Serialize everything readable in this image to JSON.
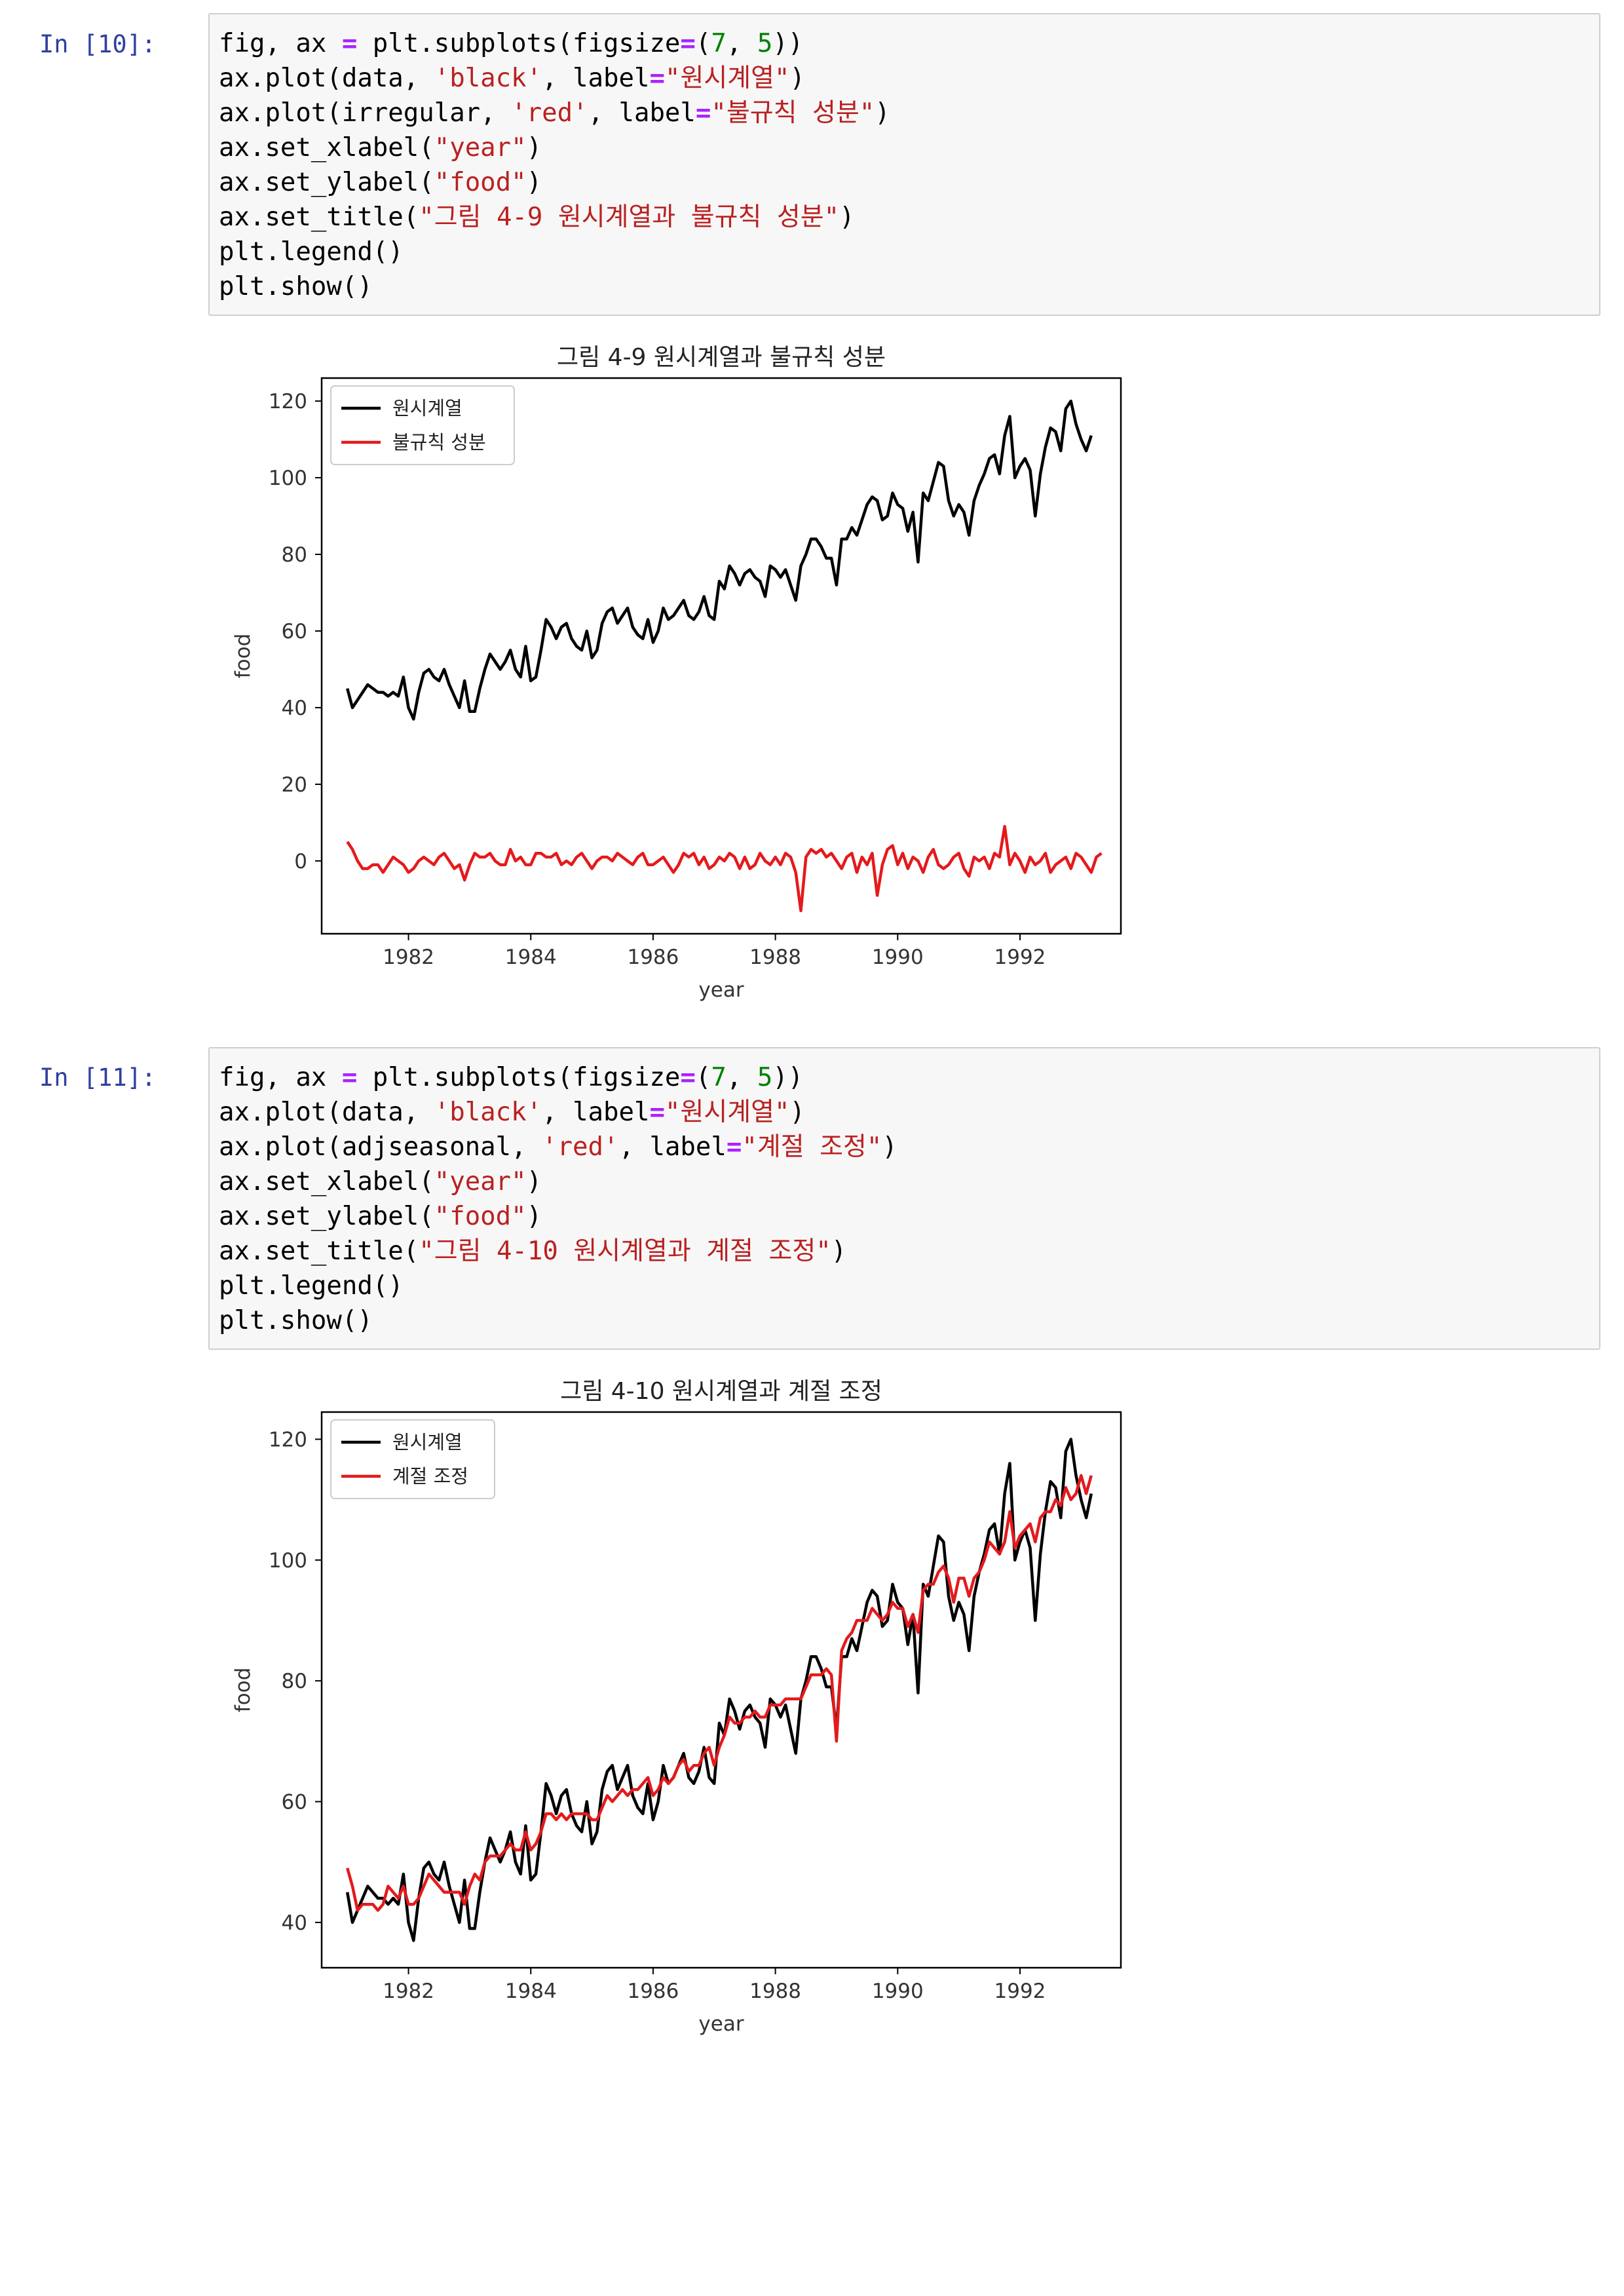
{
  "cells": [
    {
      "prompt": "In [10]:",
      "code": [
        [
          {
            "t": "fig, ax "
          },
          {
            "t": "=",
            "c": "op"
          },
          {
            "t": " plt.subplots(figsize"
          },
          {
            "t": "=",
            "c": "op"
          },
          {
            "t": "("
          },
          {
            "t": "7",
            "c": "num"
          },
          {
            "t": ", "
          },
          {
            "t": "5",
            "c": "num"
          },
          {
            "t": "))"
          }
        ],
        [
          {
            "t": "ax.plot(data, "
          },
          {
            "t": "'black'",
            "c": "str"
          },
          {
            "t": ", label"
          },
          {
            "t": "=",
            "c": "op"
          },
          {
            "t": "\"원시계열\"",
            "c": "str"
          },
          {
            "t": ")"
          }
        ],
        [
          {
            "t": "ax.plot(irregular, "
          },
          {
            "t": "'red'",
            "c": "str"
          },
          {
            "t": ", label"
          },
          {
            "t": "=",
            "c": "op"
          },
          {
            "t": "\"불규칙 성분\"",
            "c": "str"
          },
          {
            "t": ")"
          }
        ],
        [
          {
            "t": "ax.set_xlabel("
          },
          {
            "t": "\"year\"",
            "c": "str"
          },
          {
            "t": ")"
          }
        ],
        [
          {
            "t": "ax.set_ylabel("
          },
          {
            "t": "\"food\"",
            "c": "str"
          },
          {
            "t": ")"
          }
        ],
        [
          {
            "t": "ax.set_title("
          },
          {
            "t": "\"그림 4-9 원시계열과 불규칙 성분\"",
            "c": "str"
          },
          {
            "t": ")"
          }
        ],
        [
          {
            "t": "plt.legend()"
          }
        ],
        [
          {
            "t": "plt.show()"
          }
        ]
      ]
    },
    {
      "prompt": "In [11]:",
      "code": [
        [
          {
            "t": "fig, ax "
          },
          {
            "t": "=",
            "c": "op"
          },
          {
            "t": " plt.subplots(figsize"
          },
          {
            "t": "=",
            "c": "op"
          },
          {
            "t": "("
          },
          {
            "t": "7",
            "c": "num"
          },
          {
            "t": ", "
          },
          {
            "t": "5",
            "c": "num"
          },
          {
            "t": "))"
          }
        ],
        [
          {
            "t": "ax.plot(data, "
          },
          {
            "t": "'black'",
            "c": "str"
          },
          {
            "t": ", label"
          },
          {
            "t": "=",
            "c": "op"
          },
          {
            "t": "\"원시계열\"",
            "c": "str"
          },
          {
            "t": ")"
          }
        ],
        [
          {
            "t": "ax.plot(adjseasonal, "
          },
          {
            "t": "'red'",
            "c": "str"
          },
          {
            "t": ", label"
          },
          {
            "t": "=",
            "c": "op"
          },
          {
            "t": "\"계절 조정\"",
            "c": "str"
          },
          {
            "t": ")"
          }
        ],
        [
          {
            "t": "ax.set_xlabel("
          },
          {
            "t": "\"year\"",
            "c": "str"
          },
          {
            "t": ")"
          }
        ],
        [
          {
            "t": "ax.set_ylabel("
          },
          {
            "t": "\"food\"",
            "c": "str"
          },
          {
            "t": ")"
          }
        ],
        [
          {
            "t": "ax.set_title("
          },
          {
            "t": "\"그림 4-10 원시계열과 계절 조정\"",
            "c": "str"
          },
          {
            "t": ")"
          }
        ],
        [
          {
            "t": "plt.legend()"
          }
        ],
        [
          {
            "t": "plt.show()"
          }
        ]
      ]
    }
  ],
  "colors": {
    "prompt": "#303f9f",
    "string": "#ba2121",
    "number": "#008000",
    "operator": "#aa22ff",
    "series_black": "#000000",
    "series_red": "#e41a1c"
  },
  "chart_data": [
    {
      "type": "line",
      "title": "그림 4-9 원시계열과 불규칙 성분",
      "xlabel": "year",
      "ylabel": "food",
      "xlim": [
        1980.58,
        1993.65
      ],
      "ylim": [
        -19,
        126
      ],
      "xticks": [
        1982,
        1984,
        1986,
        1988,
        1990,
        1992
      ],
      "yticks": [
        0,
        20,
        40,
        60,
        80,
        100,
        120
      ],
      "legend": "upper-left",
      "x_start": 1981.0,
      "x_step": 0.08333,
      "series": [
        {
          "name": "원시계열",
          "color": "#000000",
          "values": [
            45,
            40,
            42,
            44,
            46,
            45,
            44,
            44,
            43,
            44,
            43,
            48,
            40,
            37,
            44,
            49,
            50,
            48,
            47,
            50,
            46,
            43,
            40,
            47,
            39,
            39,
            45,
            50,
            54,
            52,
            50,
            52,
            55,
            50,
            48,
            56,
            47,
            48,
            55,
            63,
            61,
            58,
            61,
            62,
            58,
            56,
            55,
            60,
            53,
            55,
            62,
            65,
            66,
            62,
            64,
            66,
            61,
            59,
            58,
            63,
            57,
            60,
            66,
            63,
            64,
            66,
            68,
            64,
            63,
            65,
            69,
            64,
            63,
            73,
            71,
            77,
            75,
            72,
            75,
            76,
            74,
            73,
            69,
            77,
            76,
            74,
            76,
            72,
            68,
            77,
            80,
            84,
            84,
            82,
            79,
            79,
            72,
            84,
            84,
            87,
            85,
            89,
            93,
            95,
            94,
            89,
            90,
            96,
            93,
            92,
            86,
            91,
            78,
            96,
            94,
            99,
            104,
            103,
            94,
            90,
            93,
            91,
            85,
            94,
            98,
            101,
            105,
            106,
            101,
            111,
            116,
            100,
            103,
            105,
            102,
            90,
            101,
            108,
            113,
            112,
            107,
            118,
            120,
            114,
            110,
            107,
            111
          ]
        },
        {
          "name": "불규칙 성분",
          "color": "#e41a1c",
          "values": [
            5,
            3,
            0,
            -2,
            -2,
            -1,
            -1,
            -3,
            -1,
            1,
            0,
            -1,
            -3,
            -2,
            0,
            1,
            0,
            -1,
            1,
            2,
            0,
            -2,
            -1,
            -5,
            -1,
            2,
            1,
            1,
            2,
            0,
            -1,
            -1,
            3,
            0,
            1,
            -1,
            -1,
            2,
            2,
            1,
            1,
            2,
            -1,
            0,
            -1,
            1,
            2,
            0,
            -2,
            0,
            1,
            1,
            0,
            2,
            1,
            0,
            -1,
            1,
            2,
            -1,
            -1,
            0,
            1,
            -1,
            -3,
            -1,
            2,
            1,
            2,
            -1,
            1,
            -2,
            -1,
            1,
            0,
            2,
            1,
            -2,
            1,
            -2,
            -1,
            2,
            0,
            -1,
            1,
            -1,
            2,
            1,
            -3,
            -13,
            1,
            3,
            2,
            3,
            1,
            2,
            0,
            -2,
            1,
            2,
            -3,
            1,
            -1,
            2,
            -9,
            -1,
            3,
            4,
            -1,
            2,
            -2,
            1,
            0,
            -3,
            1,
            3,
            -1,
            -2,
            -1,
            1,
            2,
            -2,
            -4,
            1,
            0,
            1,
            -2,
            2,
            1,
            9,
            -1,
            2,
            0,
            -3,
            1,
            -1,
            0,
            2,
            -3,
            -1,
            0,
            1,
            -2,
            2,
            1,
            -1,
            -3,
            1,
            2
          ]
        }
      ]
    },
    {
      "type": "line",
      "title": "그림 4-10 원시계열과 계절 조정",
      "xlabel": "year",
      "ylabel": "food",
      "xlim": [
        1980.58,
        1993.65
      ],
      "ylim": [
        32.5,
        124.5
      ],
      "xticks": [
        1982,
        1984,
        1986,
        1988,
        1990,
        1992
      ],
      "yticks": [
        40,
        60,
        80,
        100,
        120
      ],
      "legend": "upper-left",
      "x_start": 1981.0,
      "x_step": 0.08333,
      "series": [
        {
          "name": "원시계열",
          "color": "#000000",
          "values": [
            45,
            40,
            42,
            44,
            46,
            45,
            44,
            44,
            43,
            44,
            43,
            48,
            40,
            37,
            44,
            49,
            50,
            48,
            47,
            50,
            46,
            43,
            40,
            47,
            39,
            39,
            45,
            50,
            54,
            52,
            50,
            52,
            55,
            50,
            48,
            56,
            47,
            48,
            55,
            63,
            61,
            58,
            61,
            62,
            58,
            56,
            55,
            60,
            53,
            55,
            62,
            65,
            66,
            62,
            64,
            66,
            61,
            59,
            58,
            63,
            57,
            60,
            66,
            63,
            64,
            66,
            68,
            64,
            63,
            65,
            69,
            64,
            63,
            73,
            71,
            77,
            75,
            72,
            75,
            76,
            74,
            73,
            69,
            77,
            76,
            74,
            76,
            72,
            68,
            77,
            80,
            84,
            84,
            82,
            79,
            79,
            72,
            84,
            84,
            87,
            85,
            89,
            93,
            95,
            94,
            89,
            90,
            96,
            93,
            92,
            86,
            91,
            78,
            96,
            94,
            99,
            104,
            103,
            94,
            90,
            93,
            91,
            85,
            94,
            98,
            101,
            105,
            106,
            101,
            111,
            116,
            100,
            103,
            105,
            102,
            90,
            101,
            108,
            113,
            112,
            107,
            118,
            120,
            114,
            110,
            107,
            111
          ]
        },
        {
          "name": "계절 조정",
          "color": "#e41a1c",
          "values": [
            49,
            46,
            42,
            43,
            43,
            43,
            42,
            43,
            46,
            45,
            44,
            46,
            43,
            43,
            44,
            46,
            48,
            47,
            46,
            45,
            45,
            45,
            45,
            43,
            46,
            48,
            47,
            50,
            51,
            51,
            51,
            52,
            53,
            52,
            52,
            55,
            52,
            53,
            55,
            58,
            58,
            57,
            58,
            57,
            58,
            58,
            58,
            58,
            57,
            57,
            59,
            61,
            60,
            61,
            62,
            61,
            62,
            62,
            63,
            64,
            61,
            62,
            64,
            63,
            64,
            66,
            67,
            65,
            66,
            66,
            68,
            69,
            66,
            69,
            71,
            74,
            73,
            73,
            74,
            74,
            75,
            74,
            74,
            76,
            76,
            76,
            77,
            77,
            77,
            77,
            79,
            81,
            81,
            81,
            82,
            81,
            70,
            85,
            87,
            88,
            90,
            90,
            90,
            92,
            91,
            90,
            91,
            93,
            92,
            92,
            89,
            91,
            88,
            95,
            96,
            96,
            98,
            99,
            97,
            93,
            97,
            97,
            94,
            97,
            98,
            100,
            103,
            102,
            101,
            103,
            108,
            102,
            104,
            105,
            106,
            103,
            107,
            108,
            108,
            110,
            109,
            112,
            110,
            111,
            114,
            111,
            114
          ]
        }
      ]
    }
  ]
}
